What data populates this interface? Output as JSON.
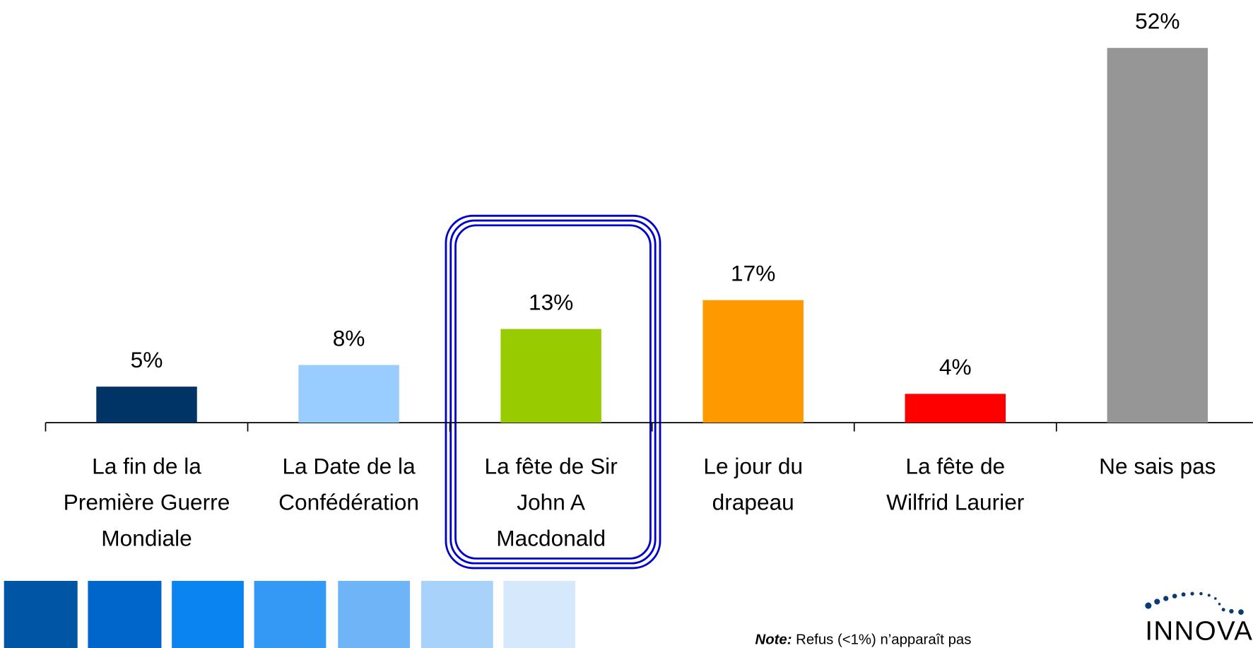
{
  "chart_data": {
    "type": "bar",
    "categories": [
      "La fin de la\nPremière Guerre\nMondiale",
      "La Date de la\nConfédération",
      "La fête de Sir\nJohn A\nMacdonald",
      "Le jour du\ndrapeau",
      "La fête de\nWilfrid Laurier",
      "Ne sais pas"
    ],
    "values": [
      5,
      8,
      13,
      17,
      4,
      52
    ],
    "value_labels": [
      "5%",
      "8%",
      "13%",
      "17%",
      "4%",
      "52%"
    ],
    "colors": [
      "#003366",
      "#99ccff",
      "#99cc00",
      "#ff9900",
      "#ff0000",
      "#969696"
    ]
  },
  "note": {
    "label": "Note:",
    "text": "Refus (<1%) n’apparaît pas"
  },
  "logo": "INNOVA"
}
